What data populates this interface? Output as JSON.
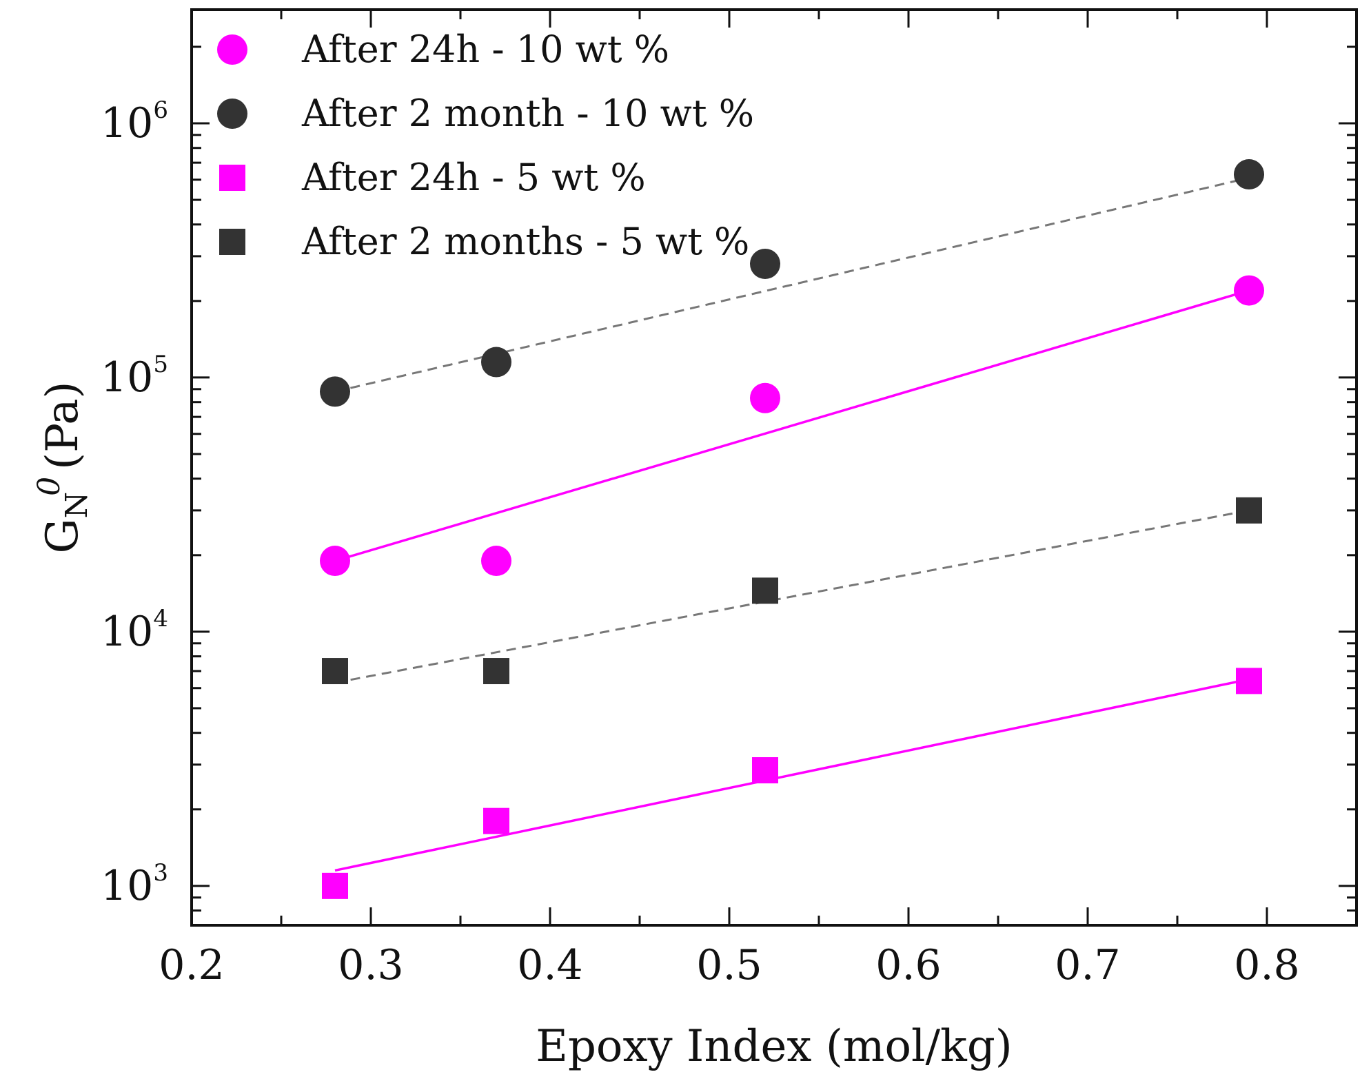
{
  "chart_data": {
    "type": "scatter",
    "title": "",
    "xlabel": "Epoxy Index (mol/kg)",
    "ylabel": {
      "main": "G",
      "sub": "N",
      "sup": "0",
      "unit": "(Pa)"
    },
    "xlim": [
      0.2,
      0.85
    ],
    "ylim": [
      700,
      2800000
    ],
    "yscale": "log",
    "x_ticks": [
      0.2,
      0.3,
      0.4,
      0.5,
      0.6,
      0.7,
      0.8
    ],
    "x_tick_labels": [
      "0.2",
      "0.3",
      "0.4",
      "0.5",
      "0.6",
      "0.7",
      "0.8"
    ],
    "y_ticks": [
      {
        "value": 1000,
        "base": "10",
        "exp": "3"
      },
      {
        "value": 10000,
        "base": "10",
        "exp": "4"
      },
      {
        "value": 100000,
        "base": "10",
        "exp": "5"
      },
      {
        "value": 1000000,
        "base": "10",
        "exp": "6"
      }
    ],
    "grid": false,
    "legend_position": "top-left",
    "series": [
      {
        "name": "After 24h - 10 wt %",
        "marker": "circle",
        "color": "#ff00ff",
        "x": [
          0.28,
          0.37,
          0.52,
          0.79
        ],
        "y": [
          19000,
          19000,
          83000,
          220000
        ],
        "fit": {
          "style": "solid",
          "x": [
            0.28,
            0.79
          ],
          "y": [
            19000,
            220000
          ]
        }
      },
      {
        "name": "After 2 month - 10 wt %",
        "marker": "circle",
        "color": "#333333",
        "x": [
          0.28,
          0.37,
          0.52,
          0.79
        ],
        "y": [
          88000,
          115000,
          280000,
          630000
        ],
        "fit": {
          "style": "dashed",
          "x": [
            0.28,
            0.79
          ],
          "y": [
            88000,
            610000
          ]
        }
      },
      {
        "name": "After 24h - 5 wt %",
        "marker": "square",
        "color": "#ff00ff",
        "x": [
          0.28,
          0.37,
          0.52,
          0.79
        ],
        "y": [
          1000,
          1800,
          2850,
          6400
        ],
        "fit": {
          "style": "solid",
          "x": [
            0.28,
            0.79
          ],
          "y": [
            1150,
            6500
          ]
        }
      },
      {
        "name": "After 2 months - 5 wt %",
        "marker": "square",
        "color": "#333333",
        "x": [
          0.28,
          0.37,
          0.52,
          0.79
        ],
        "y": [
          7000,
          7000,
          14500,
          30000
        ],
        "fit": {
          "style": "dashed",
          "x": [
            0.28,
            0.79
          ],
          "y": [
            6300,
            30000
          ]
        }
      }
    ]
  }
}
